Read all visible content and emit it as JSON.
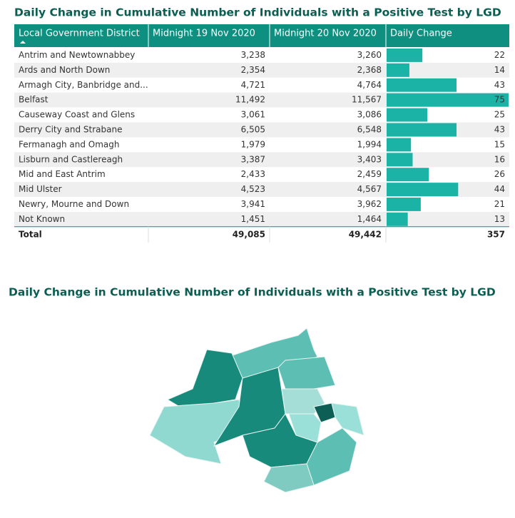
{
  "table": {
    "title": "Daily Change in Cumulative Number of Individuals with a Positive Test by LGD",
    "columns": [
      "Local Government District",
      "Midnight 19 Nov 2020",
      "Midnight 20 Nov 2020",
      "Daily Change"
    ],
    "rows": [
      [
        "Antrim and Newtownabbey",
        "3,238",
        "3,260",
        22
      ],
      [
        "Ards and North Down",
        "2,354",
        "2,368",
        14
      ],
      [
        "Armagh City, Banbridge and...",
        "4,721",
        "4,764",
        43
      ],
      [
        "Belfast",
        "11,492",
        "11,567",
        75
      ],
      [
        "Causeway Coast and Glens",
        "3,061",
        "3,086",
        25
      ],
      [
        "Derry City and Strabane",
        "6,505",
        "6,548",
        43
      ],
      [
        "Fermanagh and Omagh",
        "1,979",
        "1,994",
        15
      ],
      [
        "Lisburn and Castlereagh",
        "3,387",
        "3,403",
        16
      ],
      [
        "Mid and East Antrim",
        "2,433",
        "2,459",
        26
      ],
      [
        "Mid Ulster",
        "4,523",
        "4,567",
        44
      ],
      [
        "Newry, Mourne and Down",
        "3,941",
        "3,962",
        21
      ],
      [
        "Not Known",
        "1,451",
        "1,464",
        13
      ]
    ],
    "total": [
      "Total",
      "49,085",
      "49,442",
      357
    ]
  },
  "map": {
    "title": "Daily Change in Cumulative Number of Individuals with a Positive Test by LGD"
  }
}
